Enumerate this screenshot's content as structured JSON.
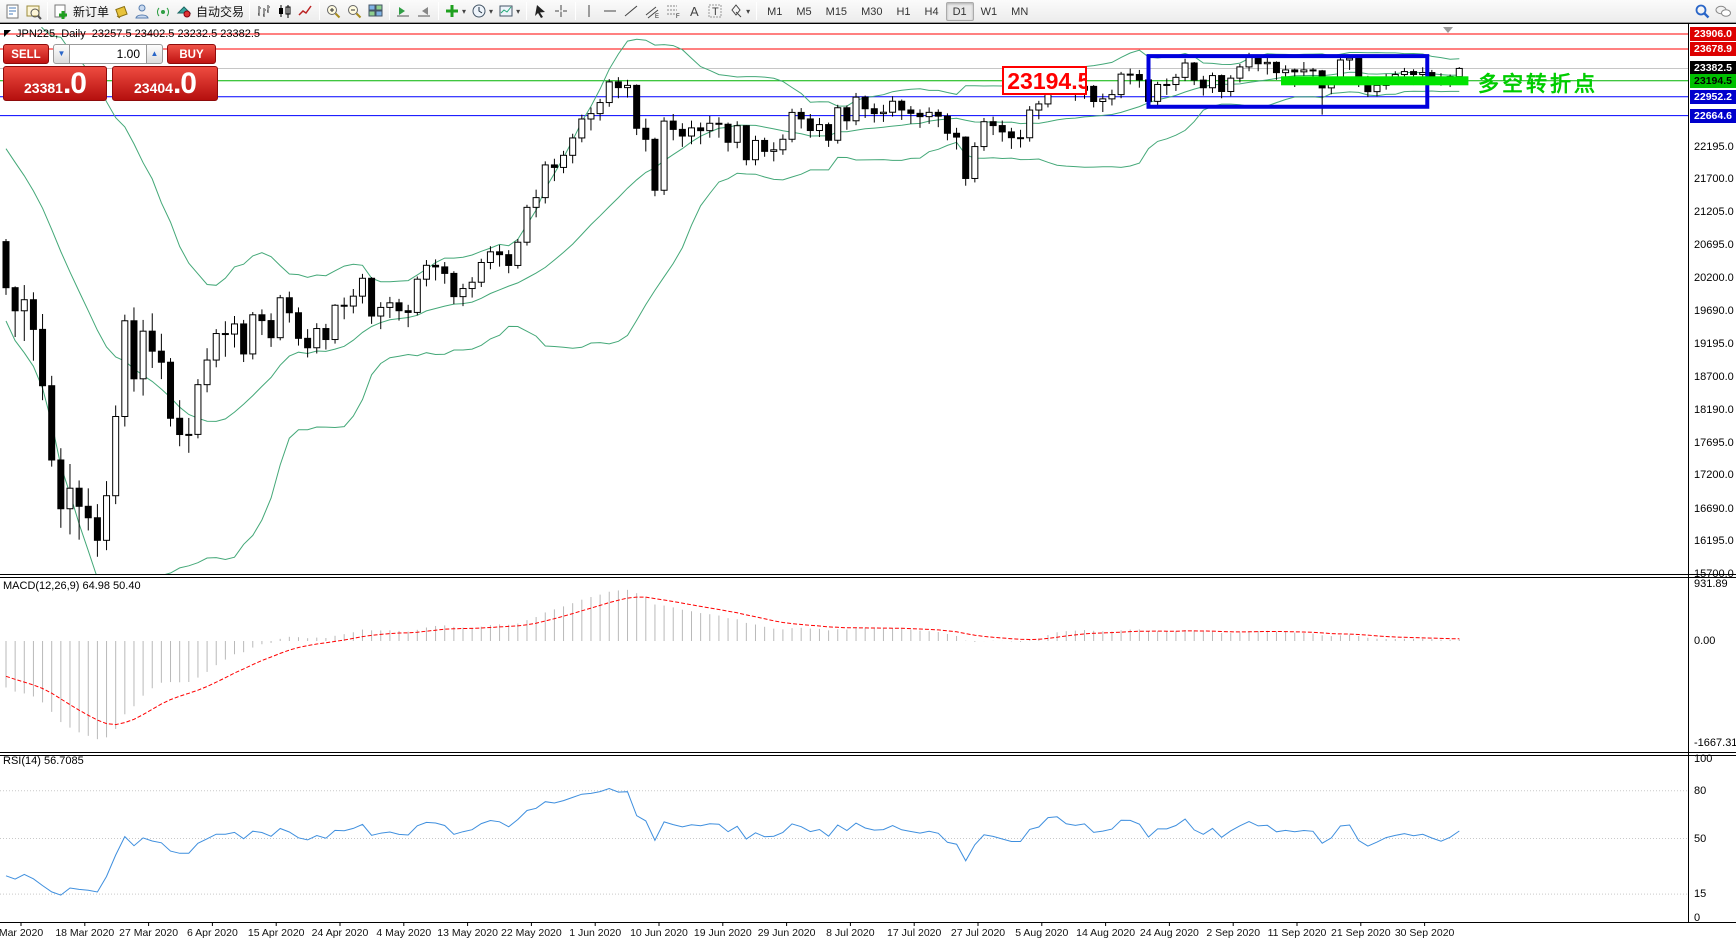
{
  "toolbar": {
    "icons_left": [
      {
        "name": "new-chart-icon",
        "icon": "doc"
      },
      {
        "name": "profiles-icon",
        "icon": "profiles"
      },
      {
        "name": "sep"
      },
      {
        "name": "new-order-button",
        "icon": "neworder",
        "label": "新订单"
      },
      {
        "name": "styler-icon",
        "icon": "bucket"
      },
      {
        "name": "community-icon",
        "icon": "person"
      },
      {
        "name": "signals-icon",
        "icon": "signal"
      },
      {
        "name": "autotrade-button",
        "icon": "ea",
        "label": "自动交易"
      },
      {
        "name": "sep"
      },
      {
        "name": "bar-chart-type-icon",
        "icon": "bars"
      },
      {
        "name": "candle-chart-type-icon",
        "icon": "candles"
      },
      {
        "name": "line-chart-type-icon",
        "icon": "linechart"
      },
      {
        "name": "sep"
      },
      {
        "name": "zoom-in-icon",
        "icon": "zoomin"
      },
      {
        "name": "zoom-out-icon",
        "icon": "zoomout"
      },
      {
        "name": "tile-windows-icon",
        "icon": "tiles"
      },
      {
        "name": "sep"
      },
      {
        "name": "auto-scroll-icon",
        "icon": "autoscroll"
      },
      {
        "name": "chart-shift-icon",
        "icon": "shift"
      },
      {
        "name": "sep"
      },
      {
        "name": "indicators-icon",
        "icon": "indicators",
        "dropdown": true
      },
      {
        "name": "periods-icon",
        "icon": "clock",
        "dropdown": true
      },
      {
        "name": "templates-icon",
        "icon": "template",
        "dropdown": true
      },
      {
        "name": "sep"
      },
      {
        "name": "cursor-icon",
        "icon": "cursor"
      },
      {
        "name": "crosshair-icon",
        "icon": "crosshair"
      },
      {
        "name": "sep"
      },
      {
        "name": "vertical-line-icon",
        "icon": "vline"
      },
      {
        "name": "horizontal-line-icon",
        "icon": "hline"
      },
      {
        "name": "trendline-icon",
        "icon": "trend"
      },
      {
        "name": "channel-icon",
        "icon": "channel"
      },
      {
        "name": "fibonacci-icon",
        "icon": "fibo"
      },
      {
        "name": "text-icon",
        "icon": "textA"
      },
      {
        "name": "text-label-icon",
        "icon": "labelT"
      },
      {
        "name": "shapes-icon",
        "icon": "shapes",
        "dropdown": true
      },
      {
        "name": "sep"
      }
    ],
    "timeframes": [
      "M1",
      "M5",
      "M15",
      "M30",
      "H1",
      "H4",
      "D1",
      "W1",
      "MN"
    ],
    "active_timeframe": "D1",
    "icons_right": [
      {
        "name": "search-icon",
        "icon": "search"
      },
      {
        "name": "chat-icon",
        "icon": "chat"
      }
    ]
  },
  "chart": {
    "title": "JPN225, Daily  23257.5 23402.5 23232.5 23382.5",
    "macd_label": "MACD(12,26,9) 64.98 50.40",
    "rsi_label": "RSI(14) 56.7085"
  },
  "quote_panel": {
    "sell_label": "SELL",
    "buy_label": "BUY",
    "volume": "1.00",
    "sell_price_main": "23381",
    "sell_price_big": ".0",
    "buy_price_main": "23404",
    "buy_price_big": ".0"
  },
  "chart_data": {
    "type": "candlestick",
    "instrument": "JPN225",
    "timeframe": "Daily",
    "current_bar": {
      "open": 23257.5,
      "high": 23402.5,
      "low": 23232.5,
      "close": 23382.5
    },
    "x_labels": [
      "Mar 2020",
      "18 Mar 2020",
      "27 Mar 2020",
      "6 Apr 2020",
      "15 Apr 2020",
      "24 Apr 2020",
      "4 May 2020",
      "13 May 2020",
      "22 May 2020",
      "1 Jun 2020",
      "10 Jun 2020",
      "19 Jun 2020",
      "29 Jun 2020",
      "8 Jul 2020",
      "17 Jul 2020",
      "27 Jul 2020",
      "5 Aug 2020",
      "14 Aug 2020",
      "24 Aug 2020",
      "2 Sep 2020",
      "11 Sep 2020",
      "21 Sep 2020",
      "30 Sep 2020"
    ],
    "price_ticks": [
      22195.0,
      21700.0,
      21205.0,
      20695.0,
      20200.0,
      19690.0,
      19195.0,
      18700.0,
      18190.0,
      17695.0,
      17200.0,
      16690.0,
      16195.0,
      15700.0
    ],
    "levels": [
      {
        "price": 23906.0,
        "line_color": "#ff0000",
        "badge_bg": "#dd0000",
        "badge_fg": "#ffffff",
        "label": "23906.0"
      },
      {
        "price": 23678.9,
        "line_color": "#ff0000",
        "badge_bg": "#dd0000",
        "badge_fg": "#ffffff",
        "label": "23678.9"
      },
      {
        "price": 23382.5,
        "line_color": "#c6c6c6",
        "badge_bg": "#000000",
        "badge_fg": "#ffffff",
        "label": "23382.5"
      },
      {
        "price": 23194.5,
        "line_color": "#00b400",
        "badge_bg": "#00c000",
        "badge_fg": "#000000",
        "label": "23194.5"
      },
      {
        "price": 22952.2,
        "line_color": "#0000ff",
        "badge_bg": "#0000cc",
        "badge_fg": "#ffffff",
        "label": "22952.2"
      },
      {
        "price": 22664.6,
        "line_color": "#0000ff",
        "badge_bg": "#0000cc",
        "badge_fg": "#ffffff",
        "label": "22664.6"
      }
    ],
    "macd_scale": [
      {
        "label": "931.89",
        "value": 931.89
      },
      {
        "label": "0.00",
        "value": 0.0
      },
      {
        "label": "-1667.31",
        "value": -1667.31
      }
    ],
    "rsi_scale": [
      {
        "label": "100",
        "value": 100
      },
      {
        "label": "80",
        "value": 80
      },
      {
        "label": "50",
        "value": 50
      },
      {
        "label": "15",
        "value": 15
      },
      {
        "label": "0",
        "value": 0
      }
    ],
    "rsi_dotted_levels": [
      80,
      50,
      15
    ],
    "indicator_params": {
      "bollinger_period": 20,
      "bollinger_dev": 2,
      "macd": [
        12,
        26,
        9
      ],
      "rsi_period": 14
    },
    "history_closes": [
      23320,
      23386,
      23312,
      23205,
      23290,
      23140,
      23380,
      23478,
      23861,
      23749,
      23828,
      23960,
      23995,
      23870,
      23850,
      23386,
      23290,
      22605,
      22426,
      22148,
      21948,
      21143,
      20749,
      21083,
      21344,
      20914,
      21280,
      20618,
      20750
    ],
    "candles": [
      [
        20750,
        20790,
        19940,
        20050
      ],
      [
        20050,
        20070,
        19300,
        19699
      ],
      [
        19699,
        20090,
        19240,
        19867
      ],
      [
        19867,
        19980,
        18940,
        19416
      ],
      [
        19416,
        19650,
        18340,
        18560
      ],
      [
        18560,
        18710,
        17330,
        17431
      ],
      [
        17431,
        17610,
        16400,
        16690
      ],
      [
        16690,
        17370,
        16300,
        17002
      ],
      [
        17002,
        17120,
        16220,
        16727
      ],
      [
        16727,
        17000,
        16360,
        16553
      ],
      [
        16553,
        16760,
        15960,
        16210
      ],
      [
        16210,
        17110,
        16060,
        16888
      ],
      [
        16888,
        18260,
        16760,
        18092
      ],
      [
        18092,
        19640,
        17940,
        19547
      ],
      [
        19547,
        19750,
        18470,
        18665
      ],
      [
        18665,
        19560,
        18410,
        19389
      ],
      [
        19389,
        19660,
        18830,
        19085
      ],
      [
        19085,
        19350,
        18660,
        18917
      ],
      [
        18917,
        18980,
        17940,
        18065
      ],
      [
        18065,
        18340,
        17640,
        17818
      ],
      [
        17818,
        18070,
        17540,
        17820
      ],
      [
        17820,
        18660,
        17760,
        18576
      ],
      [
        18576,
        19130,
        18460,
        18950
      ],
      [
        18950,
        19420,
        18840,
        19353
      ],
      [
        19353,
        19540,
        19000,
        19345
      ],
      [
        19345,
        19620,
        19140,
        19499
      ],
      [
        19499,
        19560,
        18920,
        19043
      ],
      [
        19043,
        19680,
        18960,
        19638
      ],
      [
        19638,
        19720,
        19330,
        19550
      ],
      [
        19550,
        19660,
        19150,
        19290
      ],
      [
        19290,
        19940,
        19250,
        19897
      ],
      [
        19897,
        19990,
        19520,
        19669
      ],
      [
        19669,
        19750,
        19170,
        19280
      ],
      [
        19280,
        19420,
        18990,
        19137
      ],
      [
        19137,
        19510,
        19050,
        19429
      ],
      [
        19429,
        19500,
        19110,
        19262
      ],
      [
        19262,
        19800,
        19200,
        19783
      ],
      [
        19783,
        19900,
        19570,
        19771
      ],
      [
        19771,
        20030,
        19660,
        19921
      ],
      [
        19921,
        20260,
        19810,
        20193
      ],
      [
        20193,
        20210,
        19500,
        19619
      ],
      [
        19619,
        19830,
        19420,
        19750
      ],
      [
        19750,
        19910,
        19590,
        19820
      ],
      [
        19820,
        19880,
        19550,
        19700
      ],
      [
        19700,
        19790,
        19450,
        19674
      ],
      [
        19674,
        20220,
        19630,
        20179
      ],
      [
        20179,
        20470,
        20070,
        20390
      ],
      [
        20390,
        20480,
        20160,
        20366
      ],
      [
        20366,
        20440,
        20110,
        20267
      ],
      [
        20267,
        20300,
        19800,
        19914
      ],
      [
        19914,
        20110,
        19770,
        20037
      ],
      [
        20037,
        20210,
        19900,
        20133
      ],
      [
        20133,
        20490,
        20060,
        20433
      ],
      [
        20433,
        20680,
        20330,
        20595
      ],
      [
        20595,
        20700,
        20370,
        20552
      ],
      [
        20552,
        20620,
        20270,
        20388
      ],
      [
        20388,
        20790,
        20340,
        20741
      ],
      [
        20741,
        21310,
        20690,
        21271
      ],
      [
        21271,
        21540,
        21120,
        21419
      ],
      [
        21419,
        21970,
        21330,
        21916
      ],
      [
        21916,
        22010,
        21670,
        21878
      ],
      [
        21878,
        22130,
        21790,
        22062
      ],
      [
        22062,
        22390,
        21940,
        22326
      ],
      [
        22326,
        22680,
        22260,
        22614
      ],
      [
        22614,
        22790,
        22440,
        22696
      ],
      [
        22696,
        22920,
        22590,
        22864
      ],
      [
        22864,
        23220,
        22800,
        23178
      ],
      [
        23178,
        23250,
        22930,
        23091
      ],
      [
        23091,
        23210,
        22940,
        23125
      ],
      [
        23125,
        23140,
        22370,
        22473
      ],
      [
        22473,
        22620,
        22120,
        22305
      ],
      [
        22305,
        22330,
        21440,
        21531
      ],
      [
        21531,
        22640,
        21460,
        22582
      ],
      [
        22582,
        22690,
        22290,
        22456
      ],
      [
        22456,
        22550,
        22190,
        22355
      ],
      [
        22355,
        22590,
        22230,
        22479
      ],
      [
        22479,
        22560,
        22230,
        22437
      ],
      [
        22437,
        22660,
        22330,
        22549
      ],
      [
        22549,
        22640,
        22330,
        22534
      ],
      [
        22534,
        22560,
        22120,
        22260
      ],
      [
        22260,
        22580,
        22170,
        22512
      ],
      [
        22512,
        22520,
        21910,
        21995
      ],
      [
        21995,
        22360,
        21910,
        22288
      ],
      [
        22288,
        22330,
        22040,
        22122
      ],
      [
        22122,
        22260,
        21970,
        22146
      ],
      [
        22146,
        22380,
        22070,
        22306
      ],
      [
        22306,
        22770,
        22260,
        22714
      ],
      [
        22714,
        22780,
        22470,
        22615
      ],
      [
        22615,
        22690,
        22330,
        22439
      ],
      [
        22439,
        22630,
        22340,
        22529
      ],
      [
        22529,
        22560,
        22190,
        22291
      ],
      [
        22291,
        22830,
        22240,
        22785
      ],
      [
        22785,
        22820,
        22450,
        22587
      ],
      [
        22587,
        23010,
        22520,
        22946
      ],
      [
        22946,
        22970,
        22630,
        22770
      ],
      [
        22770,
        22850,
        22560,
        22696
      ],
      [
        22696,
        22830,
        22570,
        22717
      ],
      [
        22717,
        22960,
        22650,
        22884
      ],
      [
        22884,
        22910,
        22600,
        22751
      ],
      [
        22751,
        22810,
        22540,
        22700
      ],
      [
        22700,
        22760,
        22480,
        22650
      ],
      [
        22650,
        22790,
        22540,
        22715
      ],
      [
        22715,
        22760,
        22490,
        22657
      ],
      [
        22657,
        22700,
        22290,
        22397
      ],
      [
        22397,
        22480,
        22150,
        22339
      ],
      [
        22339,
        22350,
        21600,
        21710
      ],
      [
        21710,
        22260,
        21650,
        22195
      ],
      [
        22195,
        22630,
        22130,
        22573
      ],
      [
        22573,
        22650,
        22370,
        22514
      ],
      [
        22514,
        22590,
        22270,
        22418
      ],
      [
        22418,
        22480,
        22160,
        22330
      ],
      [
        22330,
        22450,
        22180,
        22329
      ],
      [
        22329,
        22810,
        22270,
        22750
      ],
      [
        22750,
        22890,
        22610,
        22843
      ],
      [
        22843,
        23290,
        22790,
        23249
      ],
      [
        23249,
        23350,
        23110,
        23289
      ],
      [
        23289,
        23310,
        22980,
        23096
      ],
      [
        23096,
        23180,
        22890,
        23051
      ],
      [
        23051,
        23200,
        22920,
        23110
      ],
      [
        23110,
        23130,
        22790,
        22880
      ],
      [
        22880,
        23000,
        22720,
        22920
      ],
      [
        22920,
        23060,
        22820,
        22985
      ],
      [
        22985,
        23330,
        22930,
        23296
      ],
      [
        23296,
        23380,
        23140,
        23290
      ],
      [
        23290,
        23360,
        23090,
        23208
      ],
      [
        23208,
        23230,
        22790,
        22882
      ],
      [
        22882,
        23180,
        22820,
        23139
      ],
      [
        23139,
        23230,
        22980,
        23138
      ],
      [
        23138,
        23300,
        23040,
        23247
      ],
      [
        23247,
        23530,
        23190,
        23465
      ],
      [
        23465,
        23480,
        23130,
        23205
      ],
      [
        23205,
        23270,
        22970,
        23089
      ],
      [
        23089,
        23320,
        23010,
        23274
      ],
      [
        23274,
        23290,
        22930,
        23032
      ],
      [
        23032,
        23280,
        22960,
        23235
      ],
      [
        23235,
        23450,
        23170,
        23406
      ],
      [
        23406,
        23620,
        23340,
        23559
      ],
      [
        23559,
        23580,
        23340,
        23454
      ],
      [
        23454,
        23550,
        23290,
        23475
      ],
      [
        23475,
        23490,
        23210,
        23319
      ],
      [
        23319,
        23430,
        23220,
        23360
      ],
      [
        23360,
        23380,
        23100,
        23331
      ],
      [
        23331,
        23480,
        23270,
        23360
      ],
      [
        23360,
        23390,
        23150,
        23346
      ],
      [
        23346,
        23360,
        22680,
        23087
      ],
      [
        23087,
        23260,
        22990,
        23204
      ],
      [
        23204,
        23540,
        23160,
        23511
      ],
      [
        23511,
        23580,
        23360,
        23539
      ],
      [
        23539,
        23560,
        23100,
        23185
      ],
      [
        23185,
        23270,
        22950,
        23030
      ],
      [
        23030,
        23190,
        22960,
        23125
      ],
      [
        23125,
        23300,
        23060,
        23235
      ],
      [
        23235,
        23340,
        23150,
        23290
      ],
      [
        23290,
        23390,
        23200,
        23335
      ],
      [
        23335,
        23370,
        23130,
        23290
      ],
      [
        23290,
        23400,
        23240,
        23320
      ],
      [
        23320,
        23360,
        23140,
        23248
      ],
      [
        23248,
        23310,
        23120,
        23185
      ],
      [
        23185,
        23290,
        23100,
        23258
      ],
      [
        23257.5,
        23402.5,
        23232.5,
        23382.5
      ]
    ],
    "annotations": {
      "price_callout": {
        "text": "23194.5",
        "color": "#ff0000",
        "bar": 109,
        "price": 23194.5
      },
      "range_box": {
        "color": "#0000dd",
        "from_bar": 125,
        "to_bar": 155.5,
        "top_price": 23570,
        "bottom_price": 22800
      },
      "breakout_bar": {
        "color": "#00e400",
        "from_bar": 139.5,
        "to_bar": 160,
        "price": 23194.5
      },
      "note_text": {
        "text": "多空转折点",
        "color": "#00cc00"
      }
    }
  }
}
